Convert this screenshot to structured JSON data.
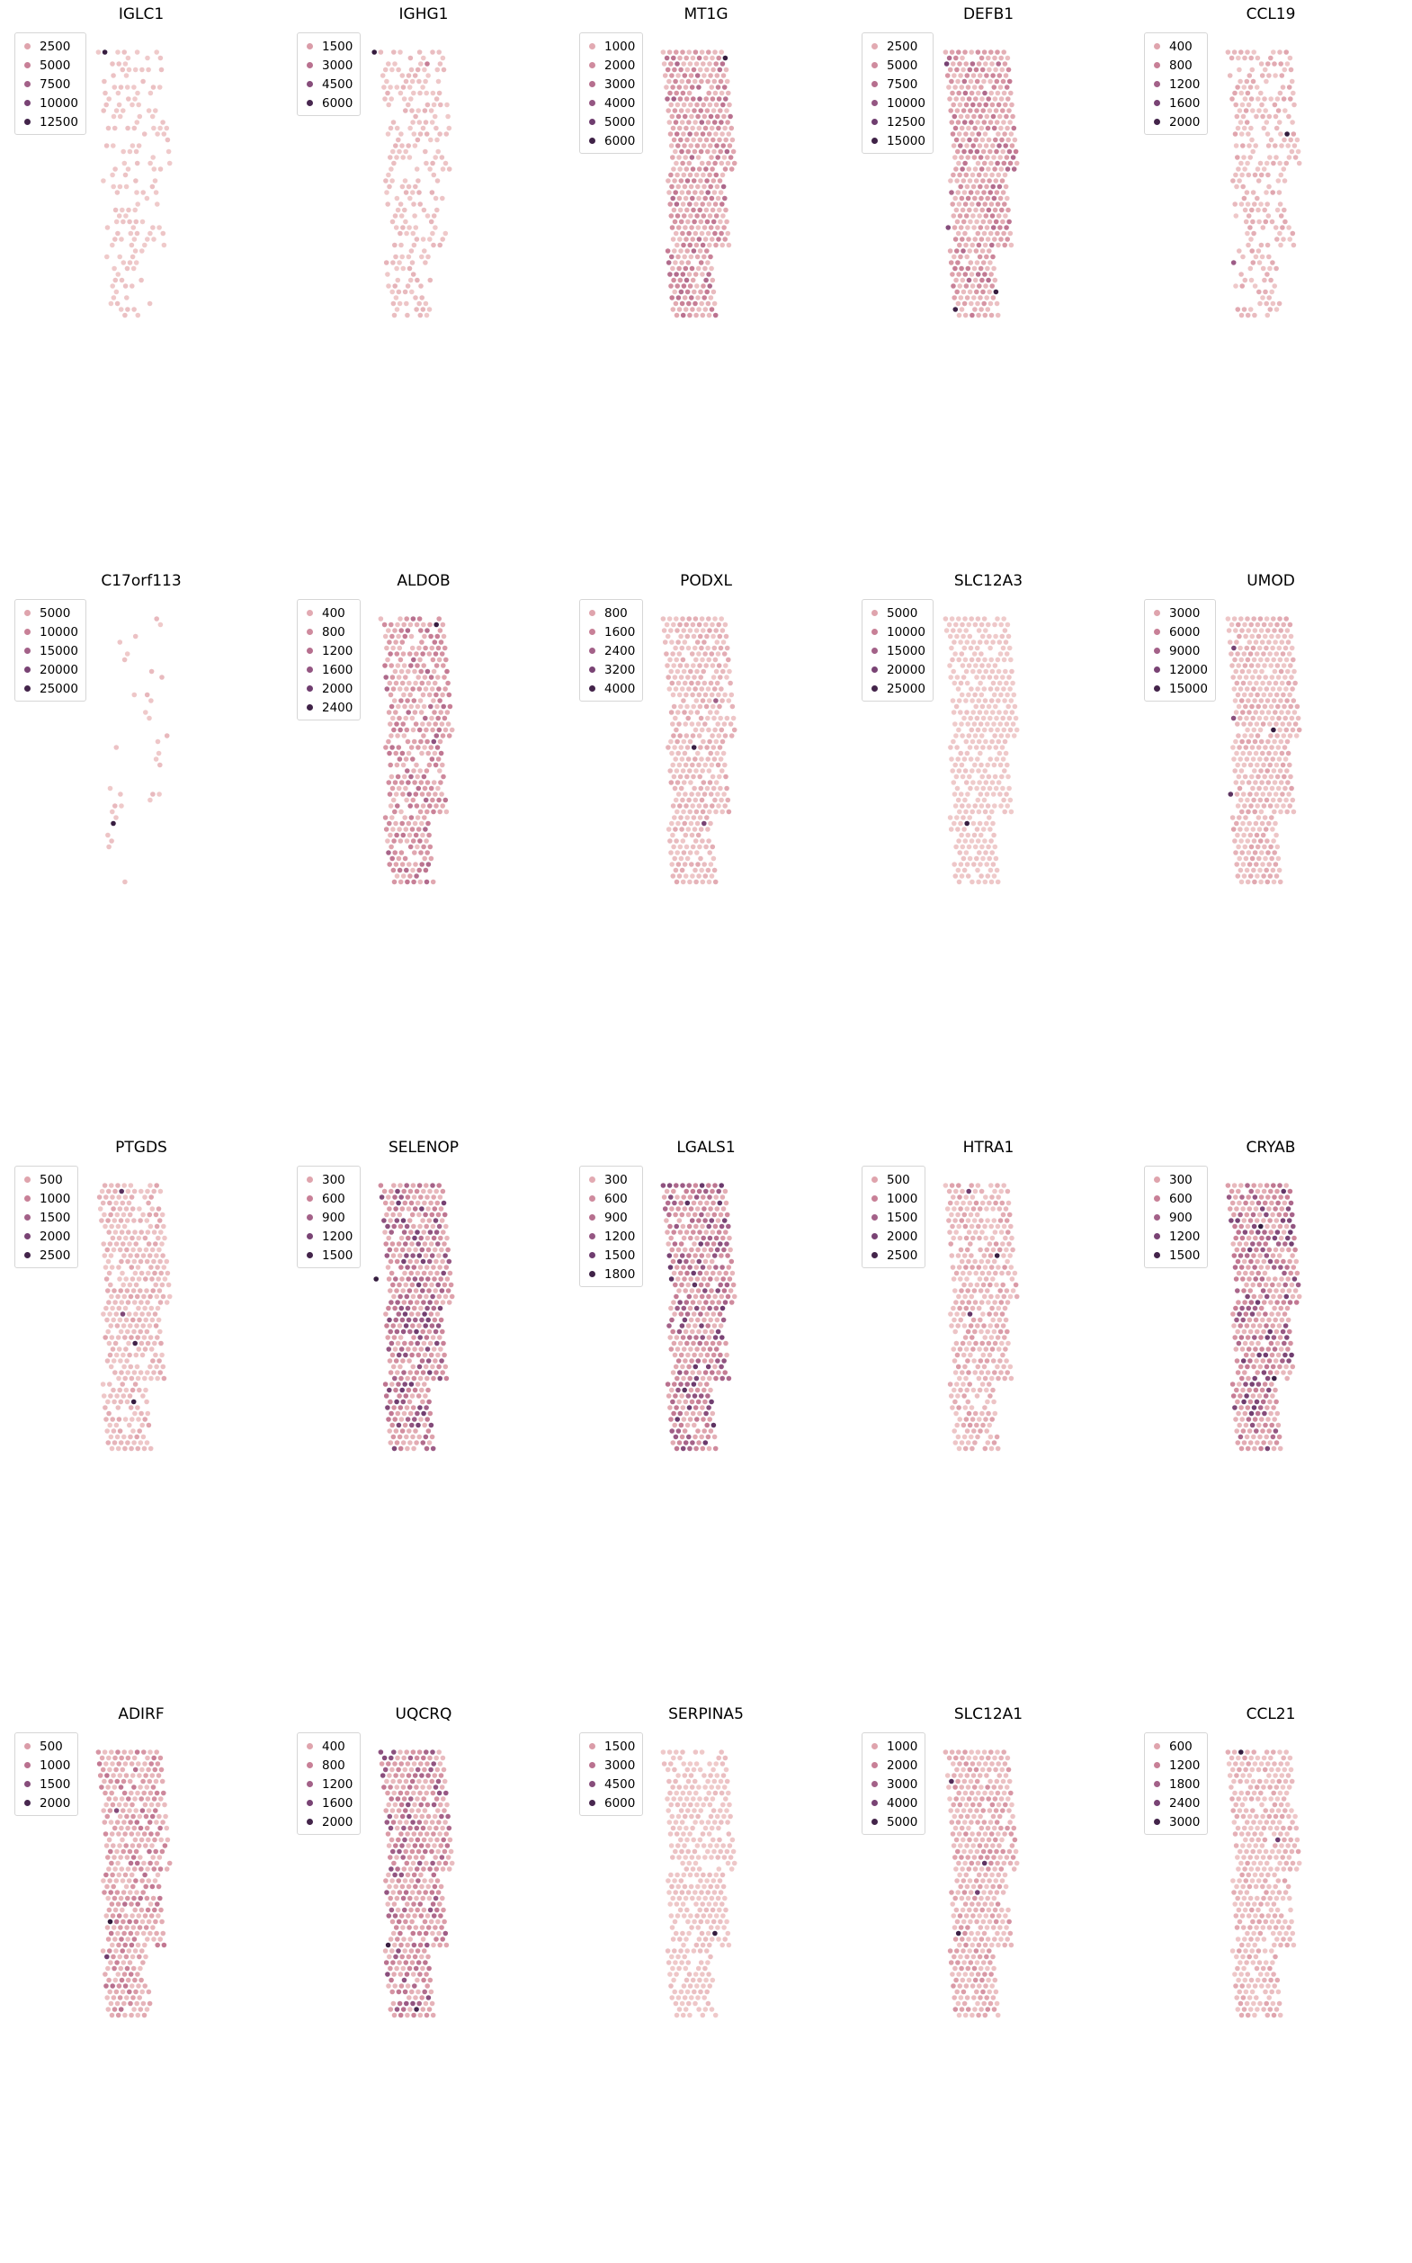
{
  "palette": [
    "#f0cccc",
    "#dea1ab",
    "#c47a93",
    "#9a5a85",
    "#6b3a6d",
    "#2b1736"
  ],
  "chart_data": [
    {
      "type": "scatter",
      "title": "IGLC1",
      "legend": [
        "2500",
        "5000",
        "7500",
        "10000",
        "12500"
      ],
      "vmax": 13500,
      "density": 0.36,
      "base": 300,
      "high_spots": [
        {
          "row": 0,
          "col": 3,
          "value": 13000
        }
      ]
    },
    {
      "type": "scatter",
      "title": "IGHG1",
      "legend": [
        "1500",
        "3000",
        "4500",
        "6000"
      ],
      "vmax": 6500,
      "density": 0.5,
      "base": 300,
      "high_spots": [
        {
          "row": 0,
          "col": 1,
          "value": 6300
        },
        {
          "row": 2,
          "col": 9,
          "value": 2500
        }
      ]
    },
    {
      "type": "scatter",
      "title": "MT1G",
      "legend": [
        "1000",
        "2000",
        "3000",
        "4000",
        "5000",
        "6000"
      ],
      "vmax": 6300,
      "density": 0.97,
      "base": 1200,
      "high_spots": [
        {
          "row": 1,
          "col": 11,
          "value": 6100
        },
        {
          "row": 8,
          "col": 3,
          "value": 3500
        },
        {
          "row": 40,
          "col": 6,
          "value": 3200
        }
      ]
    },
    {
      "type": "scatter",
      "title": "DEFB1",
      "legend": [
        "2500",
        "5000",
        "7500",
        "10000",
        "12500",
        "15000"
      ],
      "vmax": 16000,
      "density": 0.97,
      "base": 3000,
      "high_spots": [
        {
          "row": 2,
          "col": 2,
          "value": 12000
        },
        {
          "row": 41,
          "col": 6,
          "value": 15500
        },
        {
          "row": 44,
          "col": 0,
          "value": 15000
        },
        {
          "row": 30,
          "col": 0,
          "value": 11000
        }
      ]
    },
    {
      "type": "scatter",
      "title": "CCL19",
      "legend": [
        "400",
        "800",
        "1200",
        "1600",
        "2000"
      ],
      "vmax": 2200,
      "density": 0.55,
      "base": 150,
      "high_spots": [
        {
          "row": 14,
          "col": 10,
          "value": 2150
        },
        {
          "row": 36,
          "col": 0,
          "value": 1300
        }
      ]
    },
    {
      "type": "scatter",
      "title": "C17orf113",
      "legend": [
        "5000",
        "10000",
        "15000",
        "20000",
        "25000"
      ],
      "vmax": 27000,
      "density": 0.1,
      "base": 1000,
      "high_spots": [
        {
          "row": 35,
          "col": 1,
          "value": 26000
        }
      ]
    },
    {
      "type": "scatter",
      "title": "ALDOB",
      "legend": [
        "400",
        "800",
        "1200",
        "1600",
        "2000",
        "2400"
      ],
      "vmax": 2600,
      "density": 0.85,
      "base": 500,
      "high_spots": [
        {
          "row": 1,
          "col": 10,
          "value": 2500
        },
        {
          "row": 21,
          "col": 8,
          "value": 1700
        },
        {
          "row": 40,
          "col": 0,
          "value": 1400
        }
      ]
    },
    {
      "type": "scatter",
      "title": "PODXL",
      "legend": [
        "800",
        "1600",
        "2400",
        "3200",
        "4000"
      ],
      "vmax": 4300,
      "density": 0.85,
      "base": 300,
      "high_spots": [
        {
          "row": 22,
          "col": 5,
          "value": 4100
        },
        {
          "row": 14,
          "col": 9,
          "value": 2500
        },
        {
          "row": 35,
          "col": 5,
          "value": 3200
        }
      ]
    },
    {
      "type": "scatter",
      "title": "SLC12A3",
      "legend": [
        "5000",
        "10000",
        "15000",
        "20000",
        "25000"
      ],
      "vmax": 27000,
      "density": 0.85,
      "base": 500,
      "high_spots": [
        {
          "row": 35,
          "col": 2,
          "value": 26000
        }
      ]
    },
    {
      "type": "scatter",
      "title": "UMOD",
      "legend": [
        "3000",
        "6000",
        "9000",
        "12000",
        "15000"
      ],
      "vmax": 16500,
      "density": 0.97,
      "base": 1200,
      "high_spots": [
        {
          "row": 5,
          "col": 2,
          "value": 12500
        },
        {
          "row": 19,
          "col": 7,
          "value": 16000
        },
        {
          "row": 17,
          "col": 1,
          "value": 11000
        },
        {
          "row": 30,
          "col": 0,
          "value": 14000
        }
      ]
    },
    {
      "type": "scatter",
      "title": "PTGDS",
      "legend": [
        "500",
        "1000",
        "1500",
        "2000",
        "2500"
      ],
      "vmax": 2800,
      "density": 0.85,
      "base": 200,
      "high_spots": [
        {
          "row": 1,
          "col": 5,
          "value": 2400
        },
        {
          "row": 27,
          "col": 5,
          "value": 2600
        },
        {
          "row": 37,
          "col": 4,
          "value": 2700
        },
        {
          "row": 22,
          "col": 4,
          "value": 2000
        }
      ]
    },
    {
      "type": "scatter",
      "title": "SELENOP",
      "legend": [
        "300",
        "600",
        "900",
        "1200",
        "1500"
      ],
      "vmax": 1700,
      "density": 0.95,
      "base": 500,
      "high_spots": [
        {
          "row": 16,
          "col": 0,
          "value": 1650
        },
        {
          "row": 2,
          "col": 2,
          "value": 1200
        }
      ]
    },
    {
      "type": "scatter",
      "title": "LGALS1",
      "legend": [
        "300",
        "600",
        "900",
        "1200",
        "1500",
        "1800"
      ],
      "vmax": 1900,
      "density": 0.95,
      "base": 600,
      "high_spots": [
        {
          "row": 0,
          "col": 3,
          "value": 1300
        },
        {
          "row": 35,
          "col": 1,
          "value": 1200
        },
        {
          "row": 36,
          "col": 4,
          "value": 1250
        }
      ]
    },
    {
      "type": "scatter",
      "title": "HTRA1",
      "legend": [
        "500",
        "1000",
        "1500",
        "2000",
        "2500"
      ],
      "vmax": 2800,
      "density": 0.85,
      "base": 250,
      "high_spots": [
        {
          "row": 12,
          "col": 9,
          "value": 2700
        },
        {
          "row": 1,
          "col": 5,
          "value": 2200
        },
        {
          "row": 22,
          "col": 4,
          "value": 2300
        }
      ]
    },
    {
      "type": "scatter",
      "title": "CRYAB",
      "legend": [
        "300",
        "600",
        "900",
        "1200",
        "1500"
      ],
      "vmax": 1700,
      "density": 0.95,
      "base": 500,
      "high_spots": [
        {
          "row": 7,
          "col": 6,
          "value": 1650
        },
        {
          "row": 33,
          "col": 6,
          "value": 1600
        },
        {
          "row": 1,
          "col": 10,
          "value": 1400
        }
      ]
    },
    {
      "type": "scatter",
      "title": "ADIRF",
      "legend": [
        "500",
        "1000",
        "1500",
        "2000"
      ],
      "vmax": 2300,
      "density": 0.88,
      "base": 400,
      "high_spots": [
        {
          "row": 29,
          "col": 1,
          "value": 2250
        },
        {
          "row": 35,
          "col": 0,
          "value": 1800
        },
        {
          "row": 10,
          "col": 4,
          "value": 1600
        }
      ]
    },
    {
      "type": "scatter",
      "title": "UQCRQ",
      "legend": [
        "400",
        "800",
        "1200",
        "1600",
        "2000"
      ],
      "vmax": 2200,
      "density": 0.95,
      "base": 550,
      "high_spots": [
        {
          "row": 33,
          "col": 0,
          "value": 2100
        },
        {
          "row": 44,
          "col": 4,
          "value": 2000
        },
        {
          "row": 1,
          "col": 2,
          "value": 1500
        }
      ]
    },
    {
      "type": "scatter",
      "title": "SERPINA5",
      "legend": [
        "1500",
        "3000",
        "4500",
        "6000"
      ],
      "vmax": 6500,
      "density": 0.8,
      "base": 200,
      "high_spots": [
        {
          "row": 31,
          "col": 7,
          "value": 6300
        }
      ]
    },
    {
      "type": "scatter",
      "title": "SLC12A1",
      "legend": [
        "1000",
        "2000",
        "3000",
        "4000",
        "5000"
      ],
      "vmax": 5500,
      "density": 0.9,
      "base": 600,
      "high_spots": [
        {
          "row": 5,
          "col": 2,
          "value": 4800
        },
        {
          "row": 19,
          "col": 6,
          "value": 4600
        },
        {
          "row": 31,
          "col": 1,
          "value": 5200
        },
        {
          "row": 24,
          "col": 5,
          "value": 4300
        }
      ]
    },
    {
      "type": "scatter",
      "title": "CCL21",
      "legend": [
        "600",
        "1200",
        "1800",
        "2400",
        "3000"
      ],
      "vmax": 3400,
      "density": 0.88,
      "base": 250,
      "high_spots": [
        {
          "row": 0,
          "col": 4,
          "value": 3300
        },
        {
          "row": 15,
          "col": 8,
          "value": 2700
        }
      ]
    }
  ]
}
